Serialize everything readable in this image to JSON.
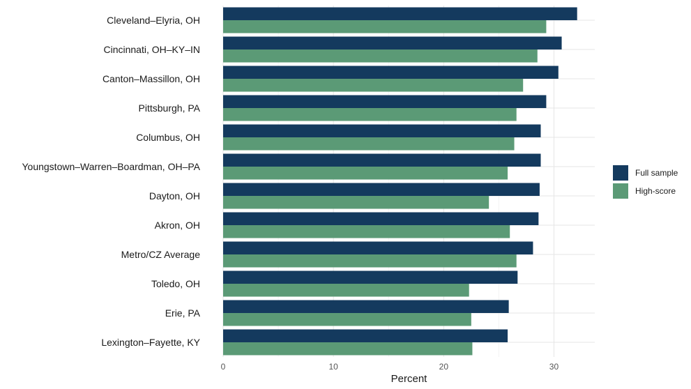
{
  "chart_data": {
    "type": "bar",
    "orientation": "horizontal",
    "categories": [
      "Cleveland–Elyria, OH",
      "Cincinnati, OH–KY–IN",
      "Canton–Massillon, OH",
      "Pittsburgh, PA",
      "Columbus, OH",
      "Youngstown–Warren–Boardman, OH–PA",
      "Dayton, OH",
      "Akron, OH",
      "Metro/CZ Average",
      "Toledo, OH",
      "Erie, PA",
      "Lexington–Fayette, KY"
    ],
    "series": [
      {
        "name": "Full sample",
        "color": "#143a5e",
        "values": [
          32.1,
          30.7,
          30.4,
          29.3,
          28.8,
          28.8,
          28.7,
          28.6,
          28.1,
          26.7,
          25.9,
          25.8
        ]
      },
      {
        "name": "High-score",
        "color": "#5b9a76",
        "values": [
          29.3,
          28.5,
          27.2,
          26.6,
          26.4,
          25.8,
          24.1,
          26.0,
          26.6,
          22.3,
          22.5,
          22.6
        ]
      }
    ],
    "xlabel": "Percent",
    "xlim": [
      0,
      33.7
    ],
    "x_ticks": [
      0,
      10,
      20,
      30
    ],
    "grid": true,
    "legend_position": "right"
  }
}
